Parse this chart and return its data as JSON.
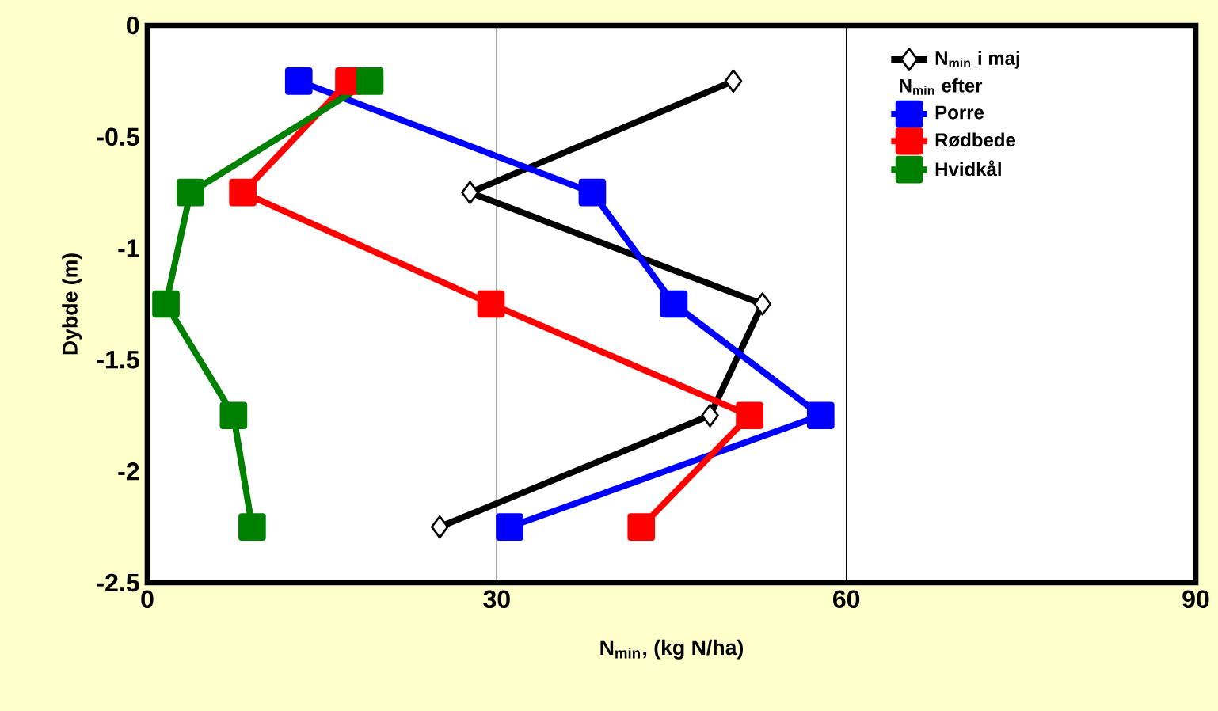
{
  "chart_data": {
    "type": "line",
    "xlabel": "N$_{min}$, (kg N/ha)",
    "ylabel": "Dybde (m)",
    "legend_title": "N$_{min}$ efter",
    "xlim": [
      0,
      90
    ],
    "xticks": [
      0,
      30,
      60,
      90
    ],
    "ylim": [
      -2.5,
      0
    ],
    "yticks": [
      0,
      -0.5,
      -1,
      -1.5,
      -2,
      -2.5
    ],
    "grid": "x",
    "legend": "top right",
    "series": [
      {
        "name": "N$_{min}$ i maj",
        "color": "#000000",
        "marker": "diamond",
        "x": [
          50.3,
          27.7,
          52.8,
          48.3,
          25.1
        ],
        "values": [
          -0.25,
          -0.75,
          -1.25,
          -1.75,
          -2.25
        ]
      },
      {
        "name": "Porre",
        "color": "#0000ff",
        "marker": "square",
        "x": [
          13.0,
          38.2,
          45.2,
          57.8,
          31.1
        ],
        "values": [
          -0.25,
          -0.75,
          -1.25,
          -1.75,
          -2.25
        ]
      },
      {
        "name": "Rødbede",
        "color": "#ff0000",
        "marker": "square",
        "x": [
          17.3,
          8.2,
          29.5,
          51.7,
          42.4
        ],
        "values": [
          -0.25,
          -0.75,
          -1.25,
          -1.75,
          -2.25
        ]
      },
      {
        "name": "Hvidkål",
        "color": "#008000",
        "marker": "square",
        "x": [
          19.1,
          3.7,
          1.6,
          7.4,
          9.0
        ],
        "values": [
          -0.25,
          -0.75,
          -1.25,
          -1.75,
          -2.25
        ]
      }
    ]
  }
}
